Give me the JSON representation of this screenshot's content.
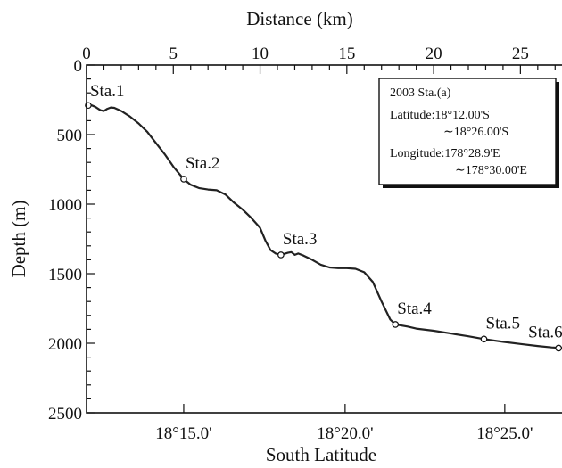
{
  "chart_data": {
    "type": "line",
    "top_xlabel": "Distance (km)",
    "xlabel": "South Latitude",
    "ylabel": "Depth (m)",
    "xlim_km": [
      0,
      27.5
    ],
    "ylim": [
      0,
      2500
    ],
    "y_inverted": true,
    "top_ticks": [
      0,
      5,
      10,
      15,
      20,
      25
    ],
    "y_ticks": [
      0,
      500,
      1000,
      1500,
      2000,
      2500
    ],
    "y_minor_step": 100,
    "top_minor_step": 1,
    "bottom_ticks": [
      {
        "label": "18°15.0'",
        "km": 5.6
      },
      {
        "label": "18°20.0'",
        "km": 14.9
      },
      {
        "label": "18°25.0'",
        "km": 24.1
      }
    ],
    "profile": {
      "name": "",
      "points": [
        [
          0.0,
          290
        ],
        [
          0.3,
          290
        ],
        [
          0.5,
          300
        ],
        [
          0.8,
          325
        ],
        [
          1.0,
          330
        ],
        [
          1.2,
          315
        ],
        [
          1.4,
          305
        ],
        [
          1.6,
          308
        ],
        [
          2.0,
          330
        ],
        [
          2.5,
          370
        ],
        [
          3.0,
          420
        ],
        [
          3.5,
          480
        ],
        [
          4.0,
          560
        ],
        [
          4.5,
          640
        ],
        [
          5.0,
          730
        ],
        [
          5.6,
          820
        ],
        [
          6.0,
          860
        ],
        [
          6.5,
          885
        ],
        [
          7.0,
          895
        ],
        [
          7.5,
          900
        ],
        [
          8.0,
          930
        ],
        [
          8.5,
          990
        ],
        [
          9.0,
          1040
        ],
        [
          9.5,
          1100
        ],
        [
          10.0,
          1170
        ],
        [
          10.3,
          1260
        ],
        [
          10.6,
          1330
        ],
        [
          10.9,
          1355
        ],
        [
          11.2,
          1365
        ],
        [
          11.6,
          1350
        ],
        [
          11.8,
          1345
        ],
        [
          12.0,
          1365
        ],
        [
          12.2,
          1355
        ],
        [
          12.5,
          1370
        ],
        [
          13.0,
          1400
        ],
        [
          13.5,
          1435
        ],
        [
          14.0,
          1455
        ],
        [
          14.5,
          1460
        ],
        [
          15.0,
          1460
        ],
        [
          15.5,
          1465
        ],
        [
          16.0,
          1490
        ],
        [
          16.5,
          1560
        ],
        [
          17.0,
          1700
        ],
        [
          17.5,
          1830
        ],
        [
          17.8,
          1865
        ],
        [
          18.5,
          1880
        ],
        [
          19.0,
          1895
        ],
        [
          20.0,
          1910
        ],
        [
          21.0,
          1930
        ],
        [
          22.0,
          1950
        ],
        [
          22.9,
          1970
        ],
        [
          24.0,
          1990
        ],
        [
          25.0,
          2005
        ],
        [
          26.0,
          2020
        ],
        [
          26.8,
          2030
        ],
        [
          27.5,
          2035
        ]
      ]
    },
    "stations": [
      {
        "label": "Sta.1",
        "km": 0.1,
        "depth": 290
      },
      {
        "label": "Sta.2",
        "km": 5.6,
        "depth": 820
      },
      {
        "label": "Sta.3",
        "km": 11.2,
        "depth": 1365
      },
      {
        "label": "Sta.4",
        "km": 17.8,
        "depth": 1865
      },
      {
        "label": "Sta.5",
        "km": 22.9,
        "depth": 1970
      },
      {
        "label": "Sta.6",
        "km": 27.2,
        "depth": 2035
      }
    ],
    "info_box": {
      "title": "2003 Sta.(a)",
      "lat_line1": "Latitude:18°12.00'S",
      "lat_line2": "∼18°26.00'S",
      "lon_line1": "Longitude:178°28.9'E",
      "lon_line2": "∼178°30.00'E"
    },
    "line_color": "#222222"
  }
}
